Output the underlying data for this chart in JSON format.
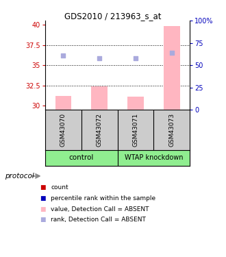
{
  "title": "GDS2010 / 213963_s_at",
  "samples": [
    "GSM43070",
    "GSM43072",
    "GSM43071",
    "GSM43073"
  ],
  "bar_values": [
    31.2,
    32.4,
    31.1,
    39.8
  ],
  "rank_values": [
    36.2,
    35.9,
    35.9,
    36.5
  ],
  "ylim_left": [
    29.5,
    40.5
  ],
  "ylim_right": [
    0,
    100
  ],
  "yticks_left": [
    30,
    32.5,
    35,
    37.5,
    40
  ],
  "yticks_right": [
    0,
    25,
    50,
    75,
    100
  ],
  "bar_color": "#FFB6C1",
  "rank_color": "#AAAADD",
  "bar_width": 0.45,
  "left_axis_color": "#CC0000",
  "right_axis_color": "#0000BB",
  "sample_bg": "#CCCCCC",
  "group_bg": "#90EE90",
  "legend_items": [
    {
      "color": "#CC0000",
      "label": "count"
    },
    {
      "color": "#0000BB",
      "label": "percentile rank within the sample"
    },
    {
      "color": "#FFB6C1",
      "label": "value, Detection Call = ABSENT"
    },
    {
      "color": "#AAAADD",
      "label": "rank, Detection Call = ABSENT"
    }
  ]
}
